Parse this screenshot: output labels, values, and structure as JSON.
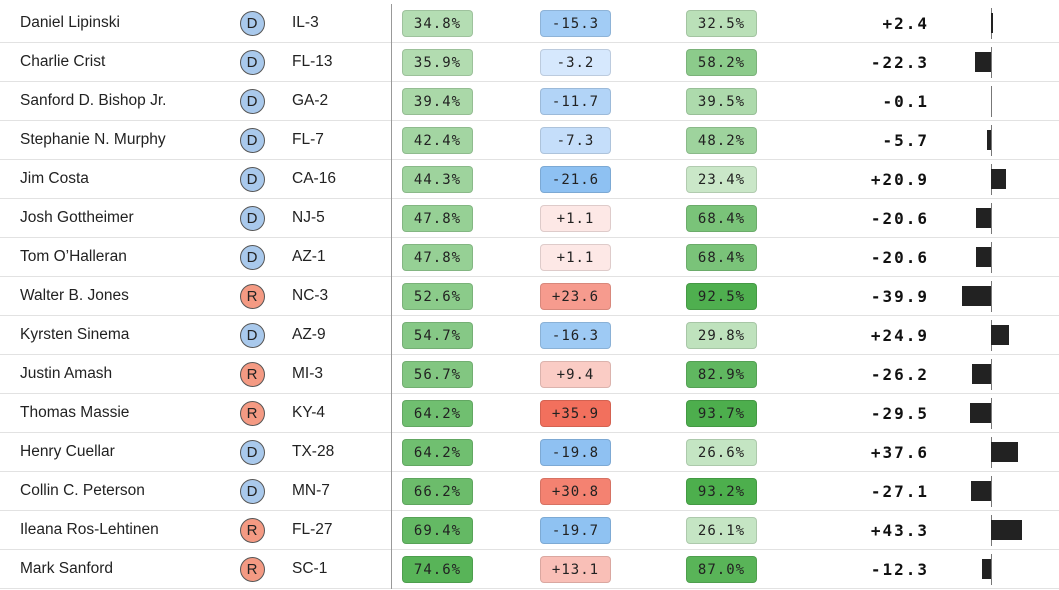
{
  "rows": [
    {
      "name": "Daniel Lipinski",
      "party": "D",
      "district": "IL-3",
      "c1": "34.8%",
      "c2": "-15.3",
      "c3": "32.5%",
      "diff": "+2.4"
    },
    {
      "name": "Charlie Crist",
      "party": "D",
      "district": "FL-13",
      "c1": "35.9%",
      "c2": "-3.2",
      "c3": "58.2%",
      "diff": "-22.3"
    },
    {
      "name": "Sanford D. Bishop Jr.",
      "party": "D",
      "district": "GA-2",
      "c1": "39.4%",
      "c2": "-11.7",
      "c3": "39.5%",
      "diff": "-0.1"
    },
    {
      "name": "Stephanie N. Murphy",
      "party": "D",
      "district": "FL-7",
      "c1": "42.4%",
      "c2": "-7.3",
      "c3": "48.2%",
      "diff": "-5.7"
    },
    {
      "name": "Jim Costa",
      "party": "D",
      "district": "CA-16",
      "c1": "44.3%",
      "c2": "-21.6",
      "c3": "23.4%",
      "diff": "+20.9"
    },
    {
      "name": "Josh Gottheimer",
      "party": "D",
      "district": "NJ-5",
      "c1": "47.8%",
      "c2": "+1.1",
      "c3": "68.4%",
      "diff": "-20.6"
    },
    {
      "name": "Tom O’Halleran",
      "party": "D",
      "district": "AZ-1",
      "c1": "47.8%",
      "c2": "+1.1",
      "c3": "68.4%",
      "diff": "-20.6"
    },
    {
      "name": "Walter B. Jones",
      "party": "R",
      "district": "NC-3",
      "c1": "52.6%",
      "c2": "+23.6",
      "c3": "92.5%",
      "diff": "-39.9"
    },
    {
      "name": "Kyrsten Sinema",
      "party": "D",
      "district": "AZ-9",
      "c1": "54.7%",
      "c2": "-16.3",
      "c3": "29.8%",
      "diff": "+24.9"
    },
    {
      "name": "Justin Amash",
      "party": "R",
      "district": "MI-3",
      "c1": "56.7%",
      "c2": "+9.4",
      "c3": "82.9%",
      "diff": "-26.2"
    },
    {
      "name": "Thomas Massie",
      "party": "R",
      "district": "KY-4",
      "c1": "64.2%",
      "c2": "+35.9",
      "c3": "93.7%",
      "diff": "-29.5"
    },
    {
      "name": "Henry Cuellar",
      "party": "D",
      "district": "TX-28",
      "c1": "64.2%",
      "c2": "-19.8",
      "c3": "26.6%",
      "diff": "+37.6"
    },
    {
      "name": "Collin C. Peterson",
      "party": "D",
      "district": "MN-7",
      "c1": "66.2%",
      "c2": "+30.8",
      "c3": "93.2%",
      "diff": "-27.1"
    },
    {
      "name": "Ileana Ros-Lehtinen",
      "party": "R",
      "district": "FL-27",
      "c1": "69.4%",
      "c2": "-19.7",
      "c3": "26.1%",
      "diff": "+43.3"
    },
    {
      "name": "Mark Sanford",
      "party": "R",
      "district": "SC-1",
      "c1": "74.6%",
      "c2": "+13.1",
      "c3": "87.0%",
      "diff": "-12.3"
    }
  ],
  "colors": {
    "dem_badge": "#a9c9ec",
    "rep_badge": "#f49a83",
    "green_light": "#e2f2e0",
    "green_dark": "#4cae4c",
    "blue_light": "#e4efff",
    "blue_dark": "#8ec1f2",
    "red_light": "#fdecea",
    "red_dark": "#f2705d",
    "bar": "#222222"
  }
}
